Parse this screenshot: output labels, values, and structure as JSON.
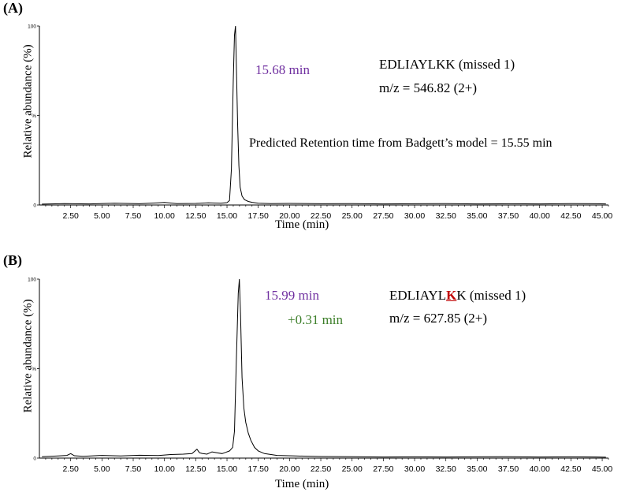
{
  "chart_data": [
    {
      "type": "line",
      "panel_label": "(A)",
      "xlabel": "Time (min)",
      "ylabel": "Relative abundance (%)",
      "xlim": [
        0,
        45.5
      ],
      "ylim": [
        0,
        100
      ],
      "x_ticks": [
        "2.50",
        "5.00",
        "7.50",
        "10.00",
        "12.50",
        "15.00",
        "17.50",
        "20.00",
        "22.50",
        "25.00",
        "27.50",
        "30.00",
        "32.50",
        "35.00",
        "37.50",
        "40.00",
        "42.50",
        "45.00"
      ],
      "y_ticks": [
        "0",
        "%",
        "100"
      ],
      "peak_label": "15.68 min",
      "peptide_label": "EDLIAYLKK (missed 1)",
      "mz_label": "m/z = 546.82 (2+)",
      "note_label": "Predicted Retention time from Badgett’s model = 15.55 min",
      "series": [
        {
          "x": [
            0.2,
            2.0,
            4.0,
            6.0,
            8.0,
            9.5,
            10.0,
            11.0,
            12.5,
            13.5,
            14.5,
            15.0,
            15.2,
            15.35,
            15.5,
            15.6,
            15.68,
            15.75,
            15.85,
            15.95,
            16.05,
            16.2,
            16.4,
            16.7,
            17.0,
            17.5,
            18.5,
            20.0,
            22.5,
            25.0,
            27.5,
            30.0,
            32.5,
            35.0,
            37.5,
            40.0,
            42.5,
            44.5,
            45.3
          ],
          "y": [
            0.5,
            0.8,
            0.6,
            1.0,
            0.7,
            1.2,
            1.4,
            0.8,
            0.9,
            1.2,
            1.0,
            1.3,
            2.5,
            20,
            70,
            95,
            100,
            78,
            45,
            22,
            10,
            5,
            3,
            2,
            1.5,
            1.0,
            0.8,
            0.9,
            0.7,
            0.8,
            0.6,
            0.7,
            0.8,
            0.6,
            0.7,
            0.6,
            0.8,
            0.7,
            0.6
          ]
        }
      ]
    },
    {
      "type": "line",
      "panel_label": "(B)",
      "xlabel": "Time (min)",
      "ylabel": "Relative abundance (%)",
      "xlim": [
        0,
        45.5
      ],
      "ylim": [
        0,
        100
      ],
      "x_ticks": [
        "2.50",
        "5.00",
        "7.50",
        "10.00",
        "12.50",
        "15.00",
        "17.50",
        "20.00",
        "22.50",
        "25.00",
        "27.50",
        "30.00",
        "32.50",
        "35.00",
        "37.50",
        "40.00",
        "42.50",
        "45.00"
      ],
      "y_ticks": [
        "0",
        "%",
        "100"
      ],
      "peak_label": "15.99 min",
      "shift_label": "+0.31 min",
      "peptide_label_prefix": "EDLIAYL",
      "peptide_label_mod": "K",
      "peptide_label_suffix": "K (missed 1)",
      "mz_label": "m/z = 627.85 (2+)",
      "series": [
        {
          "x": [
            0.2,
            1.5,
            2.2,
            2.5,
            2.8,
            3.5,
            5.0,
            6.5,
            8.0,
            9.5,
            10.5,
            11.5,
            12.2,
            12.6,
            12.8,
            13.0,
            13.4,
            13.8,
            14.2,
            14.6,
            14.9,
            15.2,
            15.45,
            15.6,
            15.75,
            15.9,
            15.99,
            16.08,
            16.2,
            16.35,
            16.5,
            16.7,
            16.9,
            17.2,
            17.5,
            18.0,
            19.0,
            20.5,
            22.5,
            25.0,
            27.5,
            30.0,
            32.5,
            35.0,
            37.5,
            40.0,
            42.5,
            44.5,
            45.3
          ],
          "y": [
            0.8,
            1.2,
            1.5,
            2.5,
            1.3,
            1.0,
            1.5,
            1.2,
            1.6,
            1.4,
            2.0,
            2.2,
            2.5,
            5.0,
            3.0,
            2.6,
            2.2,
            3.5,
            3.0,
            2.5,
            3.2,
            4.0,
            6.0,
            15,
            55,
            92,
            100,
            80,
            45,
            28,
            20,
            14,
            10,
            6,
            4,
            2.5,
            1.5,
            1.2,
            0.9,
            0.8,
            0.6,
            0.7,
            0.6,
            0.7,
            0.8,
            0.6,
            0.7,
            0.6,
            0.5
          ]
        }
      ]
    }
  ]
}
